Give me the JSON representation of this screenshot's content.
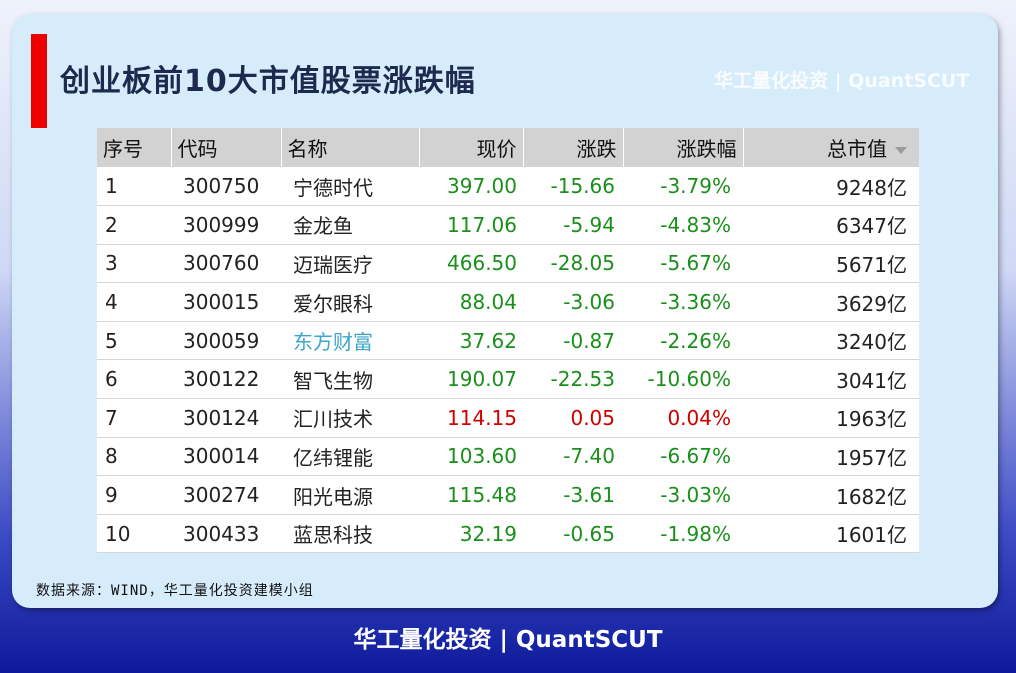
{
  "title": "创业板前10大市值股票涨跌幅",
  "watermark": "华工量化投资 | QuantSCUT",
  "headers": {
    "seq": "序号",
    "code": "代码",
    "name": "名称",
    "price": "现价",
    "change": "涨跌",
    "pct": "涨跌幅",
    "cap": "总市值"
  },
  "rows": [
    {
      "seq": "1",
      "code": "300750",
      "name": "宁德时代",
      "price": "397.00",
      "change": "-15.66",
      "pct": "-3.79%",
      "cap": "9248亿",
      "dir": "down"
    },
    {
      "seq": "2",
      "code": "300999",
      "name": "金龙鱼",
      "price": "117.06",
      "change": "-5.94",
      "pct": "-4.83%",
      "cap": "6347亿",
      "dir": "down"
    },
    {
      "seq": "3",
      "code": "300760",
      "name": "迈瑞医疗",
      "price": "466.50",
      "change": "-28.05",
      "pct": "-5.67%",
      "cap": "5671亿",
      "dir": "down"
    },
    {
      "seq": "4",
      "code": "300015",
      "name": "爱尔眼科",
      "price": "88.04",
      "change": "-3.06",
      "pct": "-3.36%",
      "cap": "3629亿",
      "dir": "down"
    },
    {
      "seq": "5",
      "code": "300059",
      "name": "东方财富",
      "price": "37.62",
      "change": "-0.87",
      "pct": "-2.26%",
      "cap": "3240亿",
      "dir": "down",
      "name_link": true
    },
    {
      "seq": "6",
      "code": "300122",
      "name": "智飞生物",
      "price": "190.07",
      "change": "-22.53",
      "pct": "-10.60%",
      "cap": "3041亿",
      "dir": "down"
    },
    {
      "seq": "7",
      "code": "300124",
      "name": "汇川技术",
      "price": "114.15",
      "change": "0.05",
      "pct": "0.04%",
      "cap": "1963亿",
      "dir": "up"
    },
    {
      "seq": "8",
      "code": "300014",
      "name": "亿纬锂能",
      "price": "103.60",
      "change": "-7.40",
      "pct": "-6.67%",
      "cap": "1957亿",
      "dir": "down"
    },
    {
      "seq": "9",
      "code": "300274",
      "name": "阳光电源",
      "price": "115.48",
      "change": "-3.61",
      "pct": "-3.03%",
      "cap": "1682亿",
      "dir": "down"
    },
    {
      "seq": "10",
      "code": "300433",
      "name": "蓝思科技",
      "price": "32.19",
      "change": "-0.65",
      "pct": "-1.98%",
      "cap": "1601亿",
      "dir": "down"
    }
  ],
  "source": "数据来源：WIND，华工量化投资建模小组",
  "footer": "华工量化投资 | QuantSCUT",
  "colors": {
    "up": "#d00000",
    "down": "#1b8f1b",
    "link": "#3aa6c9",
    "accent": "#ee0000"
  }
}
